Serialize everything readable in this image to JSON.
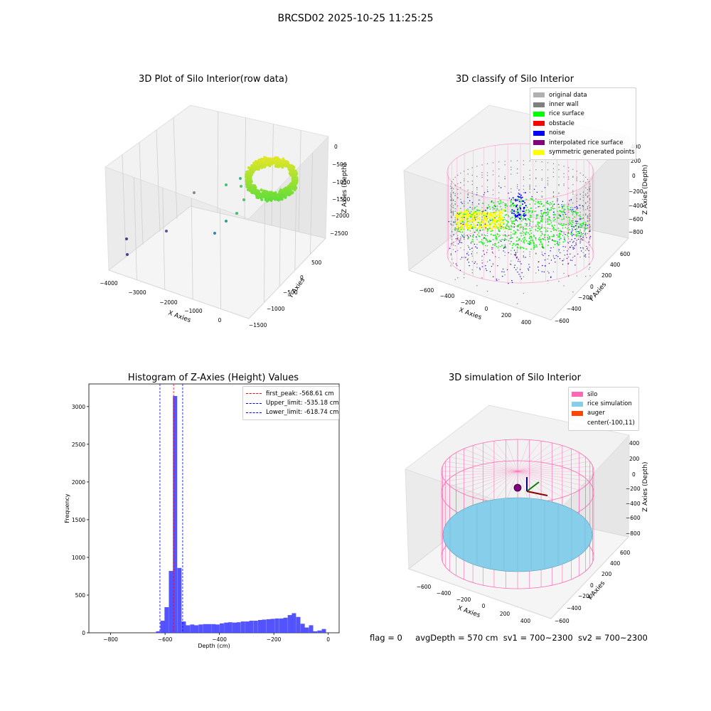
{
  "suptitle": "BRCSD02 2025-10-25 11:25:25",
  "status": {
    "flag": "flag = 0",
    "avg_depth": "avgDepth = 570 cm",
    "sv1": "sv1 = 700~2300",
    "sv2": "sv2 = 700~2300"
  },
  "colors": {
    "original": "#b0b0b0",
    "inner_wall": "#808080",
    "rice_surface": "#00ff00",
    "obstacle": "#ff0000",
    "noise": "#0000ff",
    "interpolated": "#800080",
    "symmetric": "#ffff00",
    "silo": "#ff69b4",
    "rice_sim": "#87ceeb",
    "auger": "#ff4500",
    "hist_bar": "#4040ff"
  },
  "chart_data": [
    {
      "type": "scatter",
      "title": "3D Plot of Silo Interior(row data)",
      "xlabel": "X Axies",
      "ylabel": "Y Axies",
      "zlabel": "Z Axies (Depth)",
      "x_ticks": [
        "−4000",
        "−3000",
        "−2000",
        "−1000",
        "0"
      ],
      "y_ticks": [
        "−1500",
        "−1000",
        "−500",
        "0",
        "500"
      ],
      "z_ticks": [
        "−2500",
        "−2000",
        "−1500",
        "−1000",
        "−500",
        "0"
      ]
    },
    {
      "type": "scatter",
      "title": "3D classify of Silo Interior",
      "xlabel": "X Axies",
      "ylabel": "Y Axies",
      "zlabel": "Z Axies (Depth)",
      "x_ticks": [
        "−600",
        "−400",
        "−200",
        "0",
        "200",
        "400"
      ],
      "y_ticks": [
        "−600",
        "−400",
        "−200",
        "0",
        "200",
        "400",
        "600"
      ],
      "z_ticks": [
        "−800",
        "−600",
        "−400",
        "−200",
        "0",
        "200",
        "400"
      ],
      "legend": [
        {
          "label": "original data",
          "color": "#b0b0b0"
        },
        {
          "label": "inner wall",
          "color": "#808080"
        },
        {
          "label": "rice surface",
          "color": "#00ff00"
        },
        {
          "label": "obstacle",
          "color": "#ff0000"
        },
        {
          "label": "noise",
          "color": "#0000ff"
        },
        {
          "label": "interpolated rice surface",
          "color": "#800080"
        },
        {
          "label": "symmetric generated points",
          "color": "#ffff00"
        }
      ]
    },
    {
      "type": "bar",
      "title": "Histogram of Z-Axies (Height) Values",
      "xlabel": "Depth (cm)",
      "ylabel": "Frequency",
      "xlim": [
        -880,
        40
      ],
      "ylim": [
        0,
        3300
      ],
      "x_ticks": [
        -800,
        -600,
        -400,
        -200,
        0
      ],
      "y_ticks": [
        0,
        500,
        1000,
        1500,
        2000,
        2500,
        3000
      ],
      "bin_width": 15.6,
      "bins": [
        [
          -633,
          20
        ],
        [
          -617,
          160
        ],
        [
          -602,
          340
        ],
        [
          -586,
          820
        ],
        [
          -571,
          3140
        ],
        [
          -555,
          860
        ],
        [
          -539,
          150
        ],
        [
          -524,
          100
        ],
        [
          -508,
          110
        ],
        [
          -493,
          100
        ],
        [
          -477,
          110
        ],
        [
          -461,
          115
        ],
        [
          -446,
          115
        ],
        [
          -430,
          115
        ],
        [
          -415,
          110
        ],
        [
          -399,
          125
        ],
        [
          -383,
          135
        ],
        [
          -368,
          140
        ],
        [
          -352,
          135
        ],
        [
          -337,
          140
        ],
        [
          -321,
          150
        ],
        [
          -305,
          150
        ],
        [
          -290,
          160
        ],
        [
          -274,
          160
        ],
        [
          -258,
          170
        ],
        [
          -243,
          175
        ],
        [
          -227,
          180
        ],
        [
          -212,
          185
        ],
        [
          -196,
          190
        ],
        [
          -180,
          190
        ],
        [
          -165,
          200
        ],
        [
          -149,
          235
        ],
        [
          -134,
          260
        ],
        [
          -118,
          210
        ],
        [
          -102,
          120
        ],
        [
          -87,
          70
        ],
        [
          -71,
          100
        ],
        [
          -56,
          20
        ],
        [
          -40,
          30
        ],
        [
          -24,
          50
        ]
      ],
      "vlines": [
        {
          "label": "first_peak: -568.61 cm",
          "value": -568.61,
          "color": "#ff0000"
        },
        {
          "label": "Upper_limit: -535.18 cm",
          "value": -535.18,
          "color": "#0000ff"
        },
        {
          "label": "Lower_limit: -618.74 cm",
          "value": -618.74,
          "color": "#0000ff"
        }
      ]
    },
    {
      "type": "scatter",
      "title": "3D simulation of Silo Interior",
      "xlabel": "X Axies",
      "ylabel": "Y Axies",
      "zlabel": "Z Axies (Depth)",
      "x_ticks": [
        "−600",
        "−400",
        "−200",
        "0",
        "200",
        "400"
      ],
      "y_ticks": [
        "−600",
        "−400",
        "−200",
        "0",
        "200",
        "400",
        "600"
      ],
      "z_ticks": [
        "−800",
        "−600",
        "−400",
        "−200",
        "0",
        "200",
        "400"
      ],
      "legend": [
        {
          "label": "silo",
          "color": "#ff69b4"
        },
        {
          "label": "rice simulation",
          "color": "#87ceeb"
        },
        {
          "label": "auger",
          "color": "#ff4500"
        },
        {
          "label": "center(-100,11)",
          "color": ""
        }
      ]
    }
  ]
}
